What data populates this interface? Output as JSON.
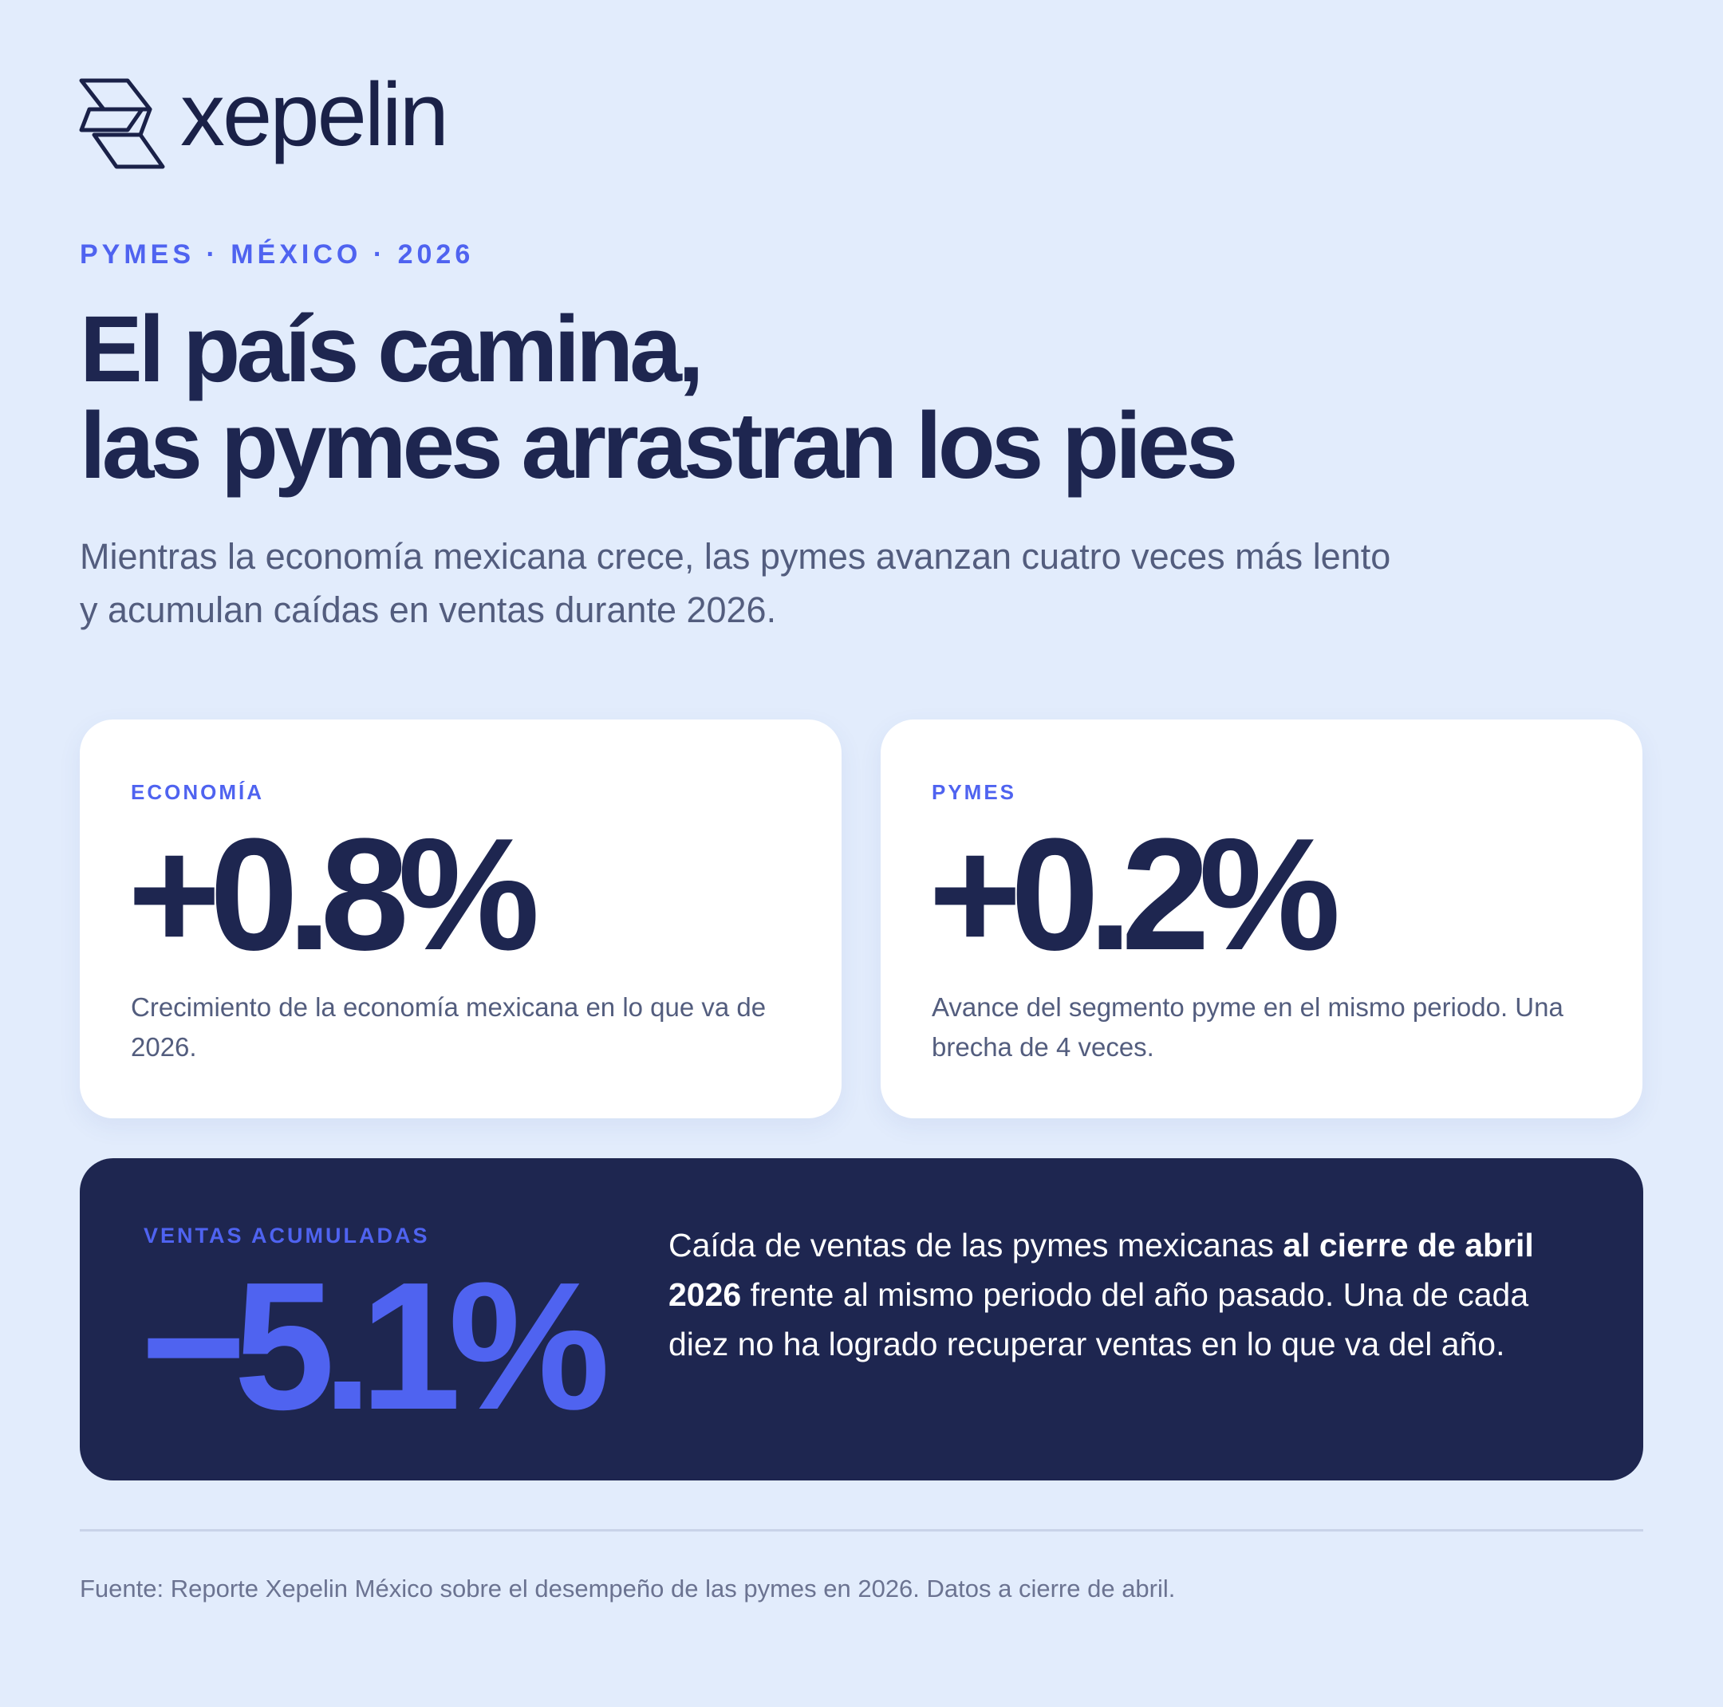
{
  "logo": {
    "wordmark": "xepelin"
  },
  "header": {
    "eyebrow": "PYMES · MÉXICO · 2026",
    "title_lines": [
      "El país camina,",
      "las pymes arrastran los pies"
    ],
    "subtitle_lines": [
      "Mientras la economía mexicana crece, las pymes avanzan cuatro veces más lento",
      "y acumulan caídas en ventas durante 2026."
    ]
  },
  "cards": [
    {
      "label": "ECONOMÍA",
      "value": "+0.8%",
      "description": "Crecimiento de la economía mexicana en lo que va de 2026."
    },
    {
      "label": "PYMES",
      "value": "+0.2%",
      "description": "Avance del segmento pyme en el mismo periodo. Una brecha de 4 veces."
    }
  ],
  "highlight": {
    "label": "VENTAS ACUMULADAS",
    "value": "−5.1%",
    "text_before": "Caída de ventas de las pymes mexicanas ",
    "text_bold": "al cierre de abril 2026",
    "text_after": " frente al mismo periodo del año pasado. Una de cada diez no ha logrado recuperar ventas en lo que va del año."
  },
  "footer": {
    "source": "Fuente: Reporte Xepelin México sobre el desempeño de las pymes en 2026. Datos a cierre de abril."
  }
}
